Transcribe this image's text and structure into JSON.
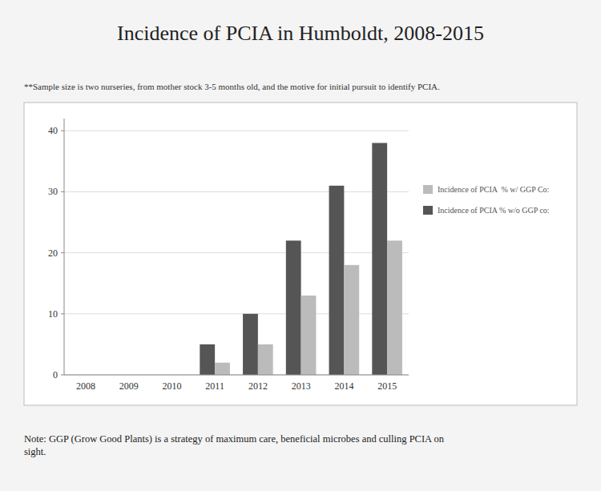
{
  "chart_data": {
    "type": "bar",
    "title": "Incidence of PCIA in Humboldt, 2008-2015",
    "subtitle": "**Sample size is two nurseries, from mother stock 3-5 months old, and the motive for initial pursuit to identify PCIA.",
    "note": "Note: GGP (Grow Good Plants) is a strategy of maximum care, beneficial microbes and culling PCIA on\nsight.",
    "categories": [
      "2008",
      "2009",
      "2010",
      "2011",
      "2012",
      "2013",
      "2014",
      "2015"
    ],
    "series": [
      {
        "name": "Incidence of PCIA % w/o GGP co:",
        "color": "#555555",
        "values": [
          0,
          0,
          0,
          5,
          10,
          22,
          31,
          38
        ]
      },
      {
        "name": "Incidence of PCIA  % w/ GGP Co:",
        "color": "#bbbbbb",
        "values": [
          0,
          0,
          0,
          2,
          5,
          13,
          18,
          22
        ]
      }
    ],
    "ylim": [
      0,
      42
    ],
    "yticks": [
      0,
      10,
      20,
      30,
      40
    ],
    "grid": true,
    "legend": "right"
  }
}
